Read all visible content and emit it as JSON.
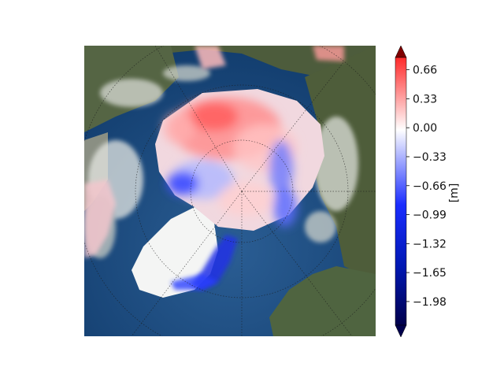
{
  "colorbar": {
    "unit": "[m]",
    "ticks": [
      "0.66",
      "0.33",
      "0.00",
      "−0.33",
      "−0.66",
      "−0.99",
      "−1.32",
      "−1.65",
      "−1.98"
    ],
    "tick_values": [
      0.66,
      0.33,
      0.0,
      -0.33,
      -0.66,
      -0.99,
      -1.32,
      -1.65,
      -1.98
    ],
    "vmin": -2.25,
    "vmax": 0.8,
    "extend": "both",
    "colormap": "seismic"
  },
  "colors": {
    "ocean": "#2a5a8c",
    "land": "#4b5f3a",
    "ice_white": "#f5f5f5",
    "positive": "#ff3b3b",
    "negative": "#1a3cff"
  }
}
